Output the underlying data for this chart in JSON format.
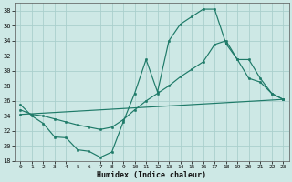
{
  "xlabel": "Humidex (Indice chaleur)",
  "xlim": [
    -0.5,
    23.5
  ],
  "ylim": [
    18,
    39
  ],
  "xticks": [
    0,
    1,
    2,
    3,
    4,
    5,
    6,
    7,
    8,
    9,
    10,
    11,
    12,
    13,
    14,
    15,
    16,
    17,
    18,
    19,
    20,
    21,
    22,
    23
  ],
  "yticks": [
    18,
    20,
    22,
    24,
    26,
    28,
    30,
    32,
    34,
    36,
    38
  ],
  "bg_color": "#cde8e5",
  "grid_color": "#aacfcc",
  "line_color": "#1e7a68",
  "line1_x": [
    0,
    1,
    2,
    3,
    4,
    5,
    6,
    7,
    8,
    9,
    10,
    11,
    12,
    13,
    14,
    15,
    16,
    17,
    18,
    19,
    20,
    21,
    22,
    23
  ],
  "line1_y": [
    25.5,
    24.0,
    23.0,
    21.2,
    21.1,
    19.5,
    19.3,
    18.5,
    19.2,
    23.2,
    27.0,
    31.5,
    27.2,
    34.0,
    36.2,
    37.2,
    38.2,
    38.2,
    33.6,
    31.5,
    29.0,
    28.5,
    27.0,
    26.2
  ],
  "line2_x": [
    0,
    1,
    2,
    3,
    4,
    5,
    6,
    7,
    8,
    9,
    10,
    11,
    12,
    13,
    14,
    15,
    16,
    17,
    18,
    19,
    20,
    21,
    22,
    23
  ],
  "line2_y": [
    24.8,
    24.2,
    24.0,
    23.6,
    23.2,
    22.8,
    22.5,
    22.2,
    22.5,
    23.5,
    24.8,
    26.0,
    27.0,
    28.0,
    29.2,
    30.2,
    31.2,
    33.5,
    34.0,
    31.5,
    31.5,
    29.0,
    27.0,
    26.2
  ],
  "line3_x": [
    0,
    23
  ],
  "line3_y": [
    24.2,
    26.2
  ]
}
